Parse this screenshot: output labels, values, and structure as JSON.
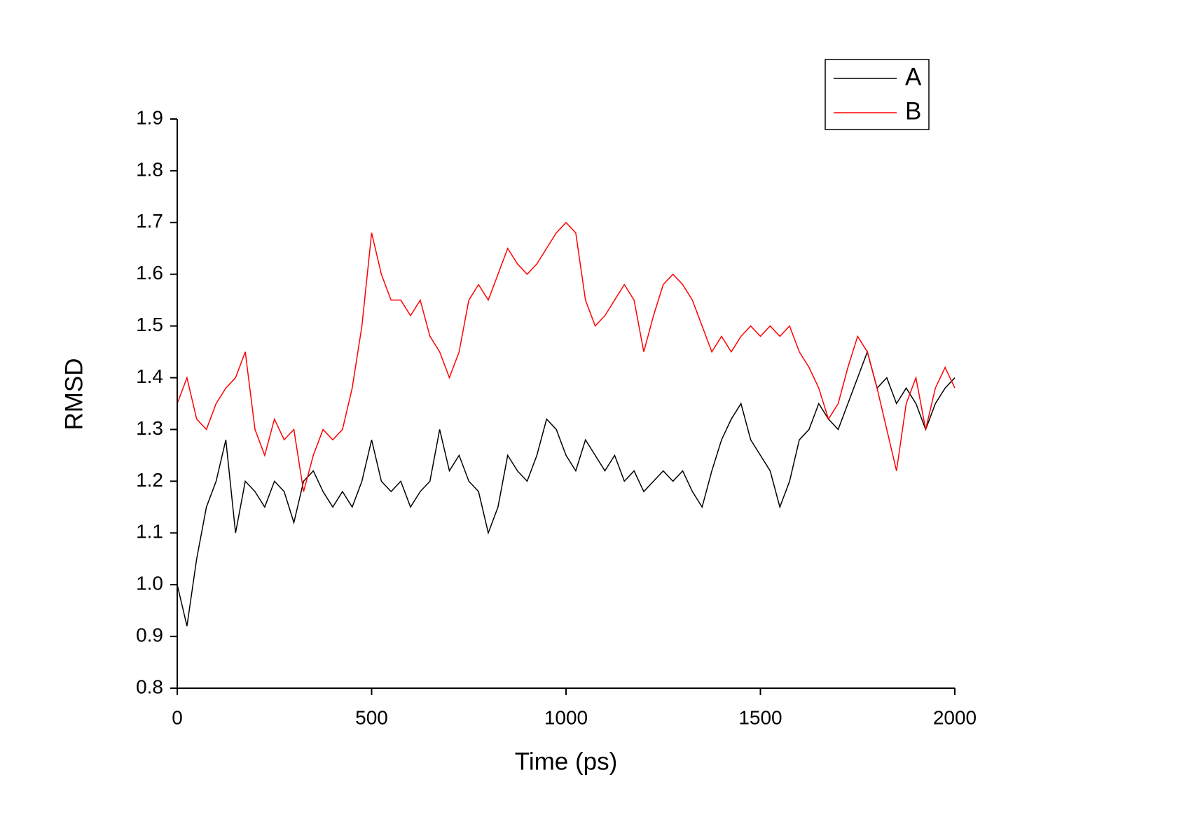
{
  "chart_data": {
    "type": "line",
    "xlabel": "Time (ps)",
    "ylabel": "RMSD",
    "x": [
      0,
      25,
      50,
      75,
      100,
      125,
      150,
      175,
      200,
      225,
      250,
      275,
      300,
      325,
      350,
      375,
      400,
      425,
      450,
      475,
      500,
      525,
      550,
      575,
      600,
      625,
      650,
      675,
      700,
      725,
      750,
      775,
      800,
      825,
      850,
      875,
      900,
      925,
      950,
      975,
      1000,
      1025,
      1050,
      1075,
      1100,
      1125,
      1150,
      1175,
      1200,
      1225,
      1250,
      1275,
      1300,
      1325,
      1350,
      1375,
      1400,
      1425,
      1450,
      1475,
      1500,
      1525,
      1550,
      1575,
      1600,
      1625,
      1650,
      1675,
      1700,
      1725,
      1750,
      1775,
      1800,
      1825,
      1850,
      1875,
      1900,
      1925,
      1950,
      1975,
      2000
    ],
    "series": [
      {
        "name": "A",
        "color": "#000000",
        "values": [
          1.0,
          0.92,
          1.05,
          1.15,
          1.2,
          1.28,
          1.1,
          1.2,
          1.18,
          1.15,
          1.2,
          1.18,
          1.12,
          1.2,
          1.22,
          1.18,
          1.15,
          1.18,
          1.15,
          1.2,
          1.28,
          1.2,
          1.18,
          1.2,
          1.15,
          1.18,
          1.2,
          1.3,
          1.22,
          1.25,
          1.2,
          1.18,
          1.1,
          1.15,
          1.25,
          1.22,
          1.2,
          1.25,
          1.32,
          1.3,
          1.25,
          1.22,
          1.28,
          1.25,
          1.22,
          1.25,
          1.2,
          1.22,
          1.18,
          1.2,
          1.22,
          1.2,
          1.22,
          1.18,
          1.15,
          1.22,
          1.28,
          1.32,
          1.35,
          1.28,
          1.25,
          1.22,
          1.15,
          1.2,
          1.28,
          1.3,
          1.35,
          1.32,
          1.3,
          1.35,
          1.4,
          1.45,
          1.38,
          1.4,
          1.35,
          1.38,
          1.35,
          1.3,
          1.35,
          1.38,
          1.4
        ]
      },
      {
        "name": "B",
        "color": "#ff0000",
        "values": [
          1.35,
          1.4,
          1.32,
          1.3,
          1.35,
          1.38,
          1.4,
          1.45,
          1.3,
          1.25,
          1.32,
          1.28,
          1.3,
          1.18,
          1.25,
          1.3,
          1.28,
          1.3,
          1.38,
          1.5,
          1.68,
          1.6,
          1.55,
          1.55,
          1.52,
          1.55,
          1.48,
          1.45,
          1.4,
          1.45,
          1.55,
          1.58,
          1.55,
          1.6,
          1.65,
          1.62,
          1.6,
          1.62,
          1.65,
          1.68,
          1.7,
          1.68,
          1.55,
          1.5,
          1.52,
          1.55,
          1.58,
          1.55,
          1.45,
          1.52,
          1.58,
          1.6,
          1.58,
          1.55,
          1.5,
          1.45,
          1.48,
          1.45,
          1.48,
          1.5,
          1.48,
          1.5,
          1.48,
          1.5,
          1.45,
          1.42,
          1.38,
          1.32,
          1.35,
          1.42,
          1.48,
          1.45,
          1.38,
          1.3,
          1.22,
          1.35,
          1.4,
          1.3,
          1.38,
          1.42,
          1.38
        ]
      }
    ],
    "xlim": [
      0,
      2000
    ],
    "xticks": [
      0,
      500,
      1000,
      1500,
      2000
    ],
    "ylim": [
      0.8,
      1.9
    ],
    "yticks": [
      0.8,
      0.9,
      {
        "value": 1,
        "label": "1.0"
      },
      1.1,
      1.2,
      1.3,
      1.4,
      1.5,
      1.6,
      1.7,
      1.8,
      1.9
    ],
    "legend": "upper right",
    "grid": false
  }
}
